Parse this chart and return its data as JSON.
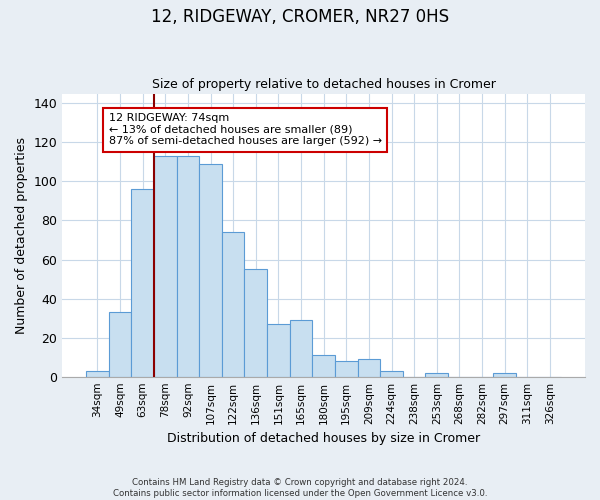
{
  "title": "12, RIDGEWAY, CROMER, NR27 0HS",
  "subtitle": "Size of property relative to detached houses in Cromer",
  "xlabel": "Distribution of detached houses by size in Cromer",
  "ylabel": "Number of detached properties",
  "bar_labels": [
    "34sqm",
    "49sqm",
    "63sqm",
    "78sqm",
    "92sqm",
    "107sqm",
    "122sqm",
    "136sqm",
    "151sqm",
    "165sqm",
    "180sqm",
    "195sqm",
    "209sqm",
    "224sqm",
    "238sqm",
    "253sqm",
    "268sqm",
    "282sqm",
    "297sqm",
    "311sqm",
    "326sqm"
  ],
  "bar_values": [
    3,
    33,
    96,
    113,
    113,
    109,
    74,
    55,
    27,
    29,
    11,
    8,
    9,
    3,
    0,
    2,
    0,
    0,
    2,
    0,
    0
  ],
  "bar_color": "#c8dff0",
  "bar_edge_color": "#5b9bd5",
  "vline_x": 2.5,
  "vline_color": "#8b0000",
  "annotation_title": "12 RIDGEWAY: 74sqm",
  "annotation_line1": "← 13% of detached houses are smaller (89)",
  "annotation_line2": "87% of semi-detached houses are larger (592) →",
  "annotation_box_edge": "#cc0000",
  "ylim": [
    0,
    145
  ],
  "yticks": [
    0,
    20,
    40,
    60,
    80,
    100,
    120,
    140
  ],
  "footer1": "Contains HM Land Registry data © Crown copyright and database right 2024.",
  "footer2": "Contains public sector information licensed under the Open Government Licence v3.0.",
  "bg_color": "#e8eef4",
  "plot_bg_color": "#ffffff"
}
